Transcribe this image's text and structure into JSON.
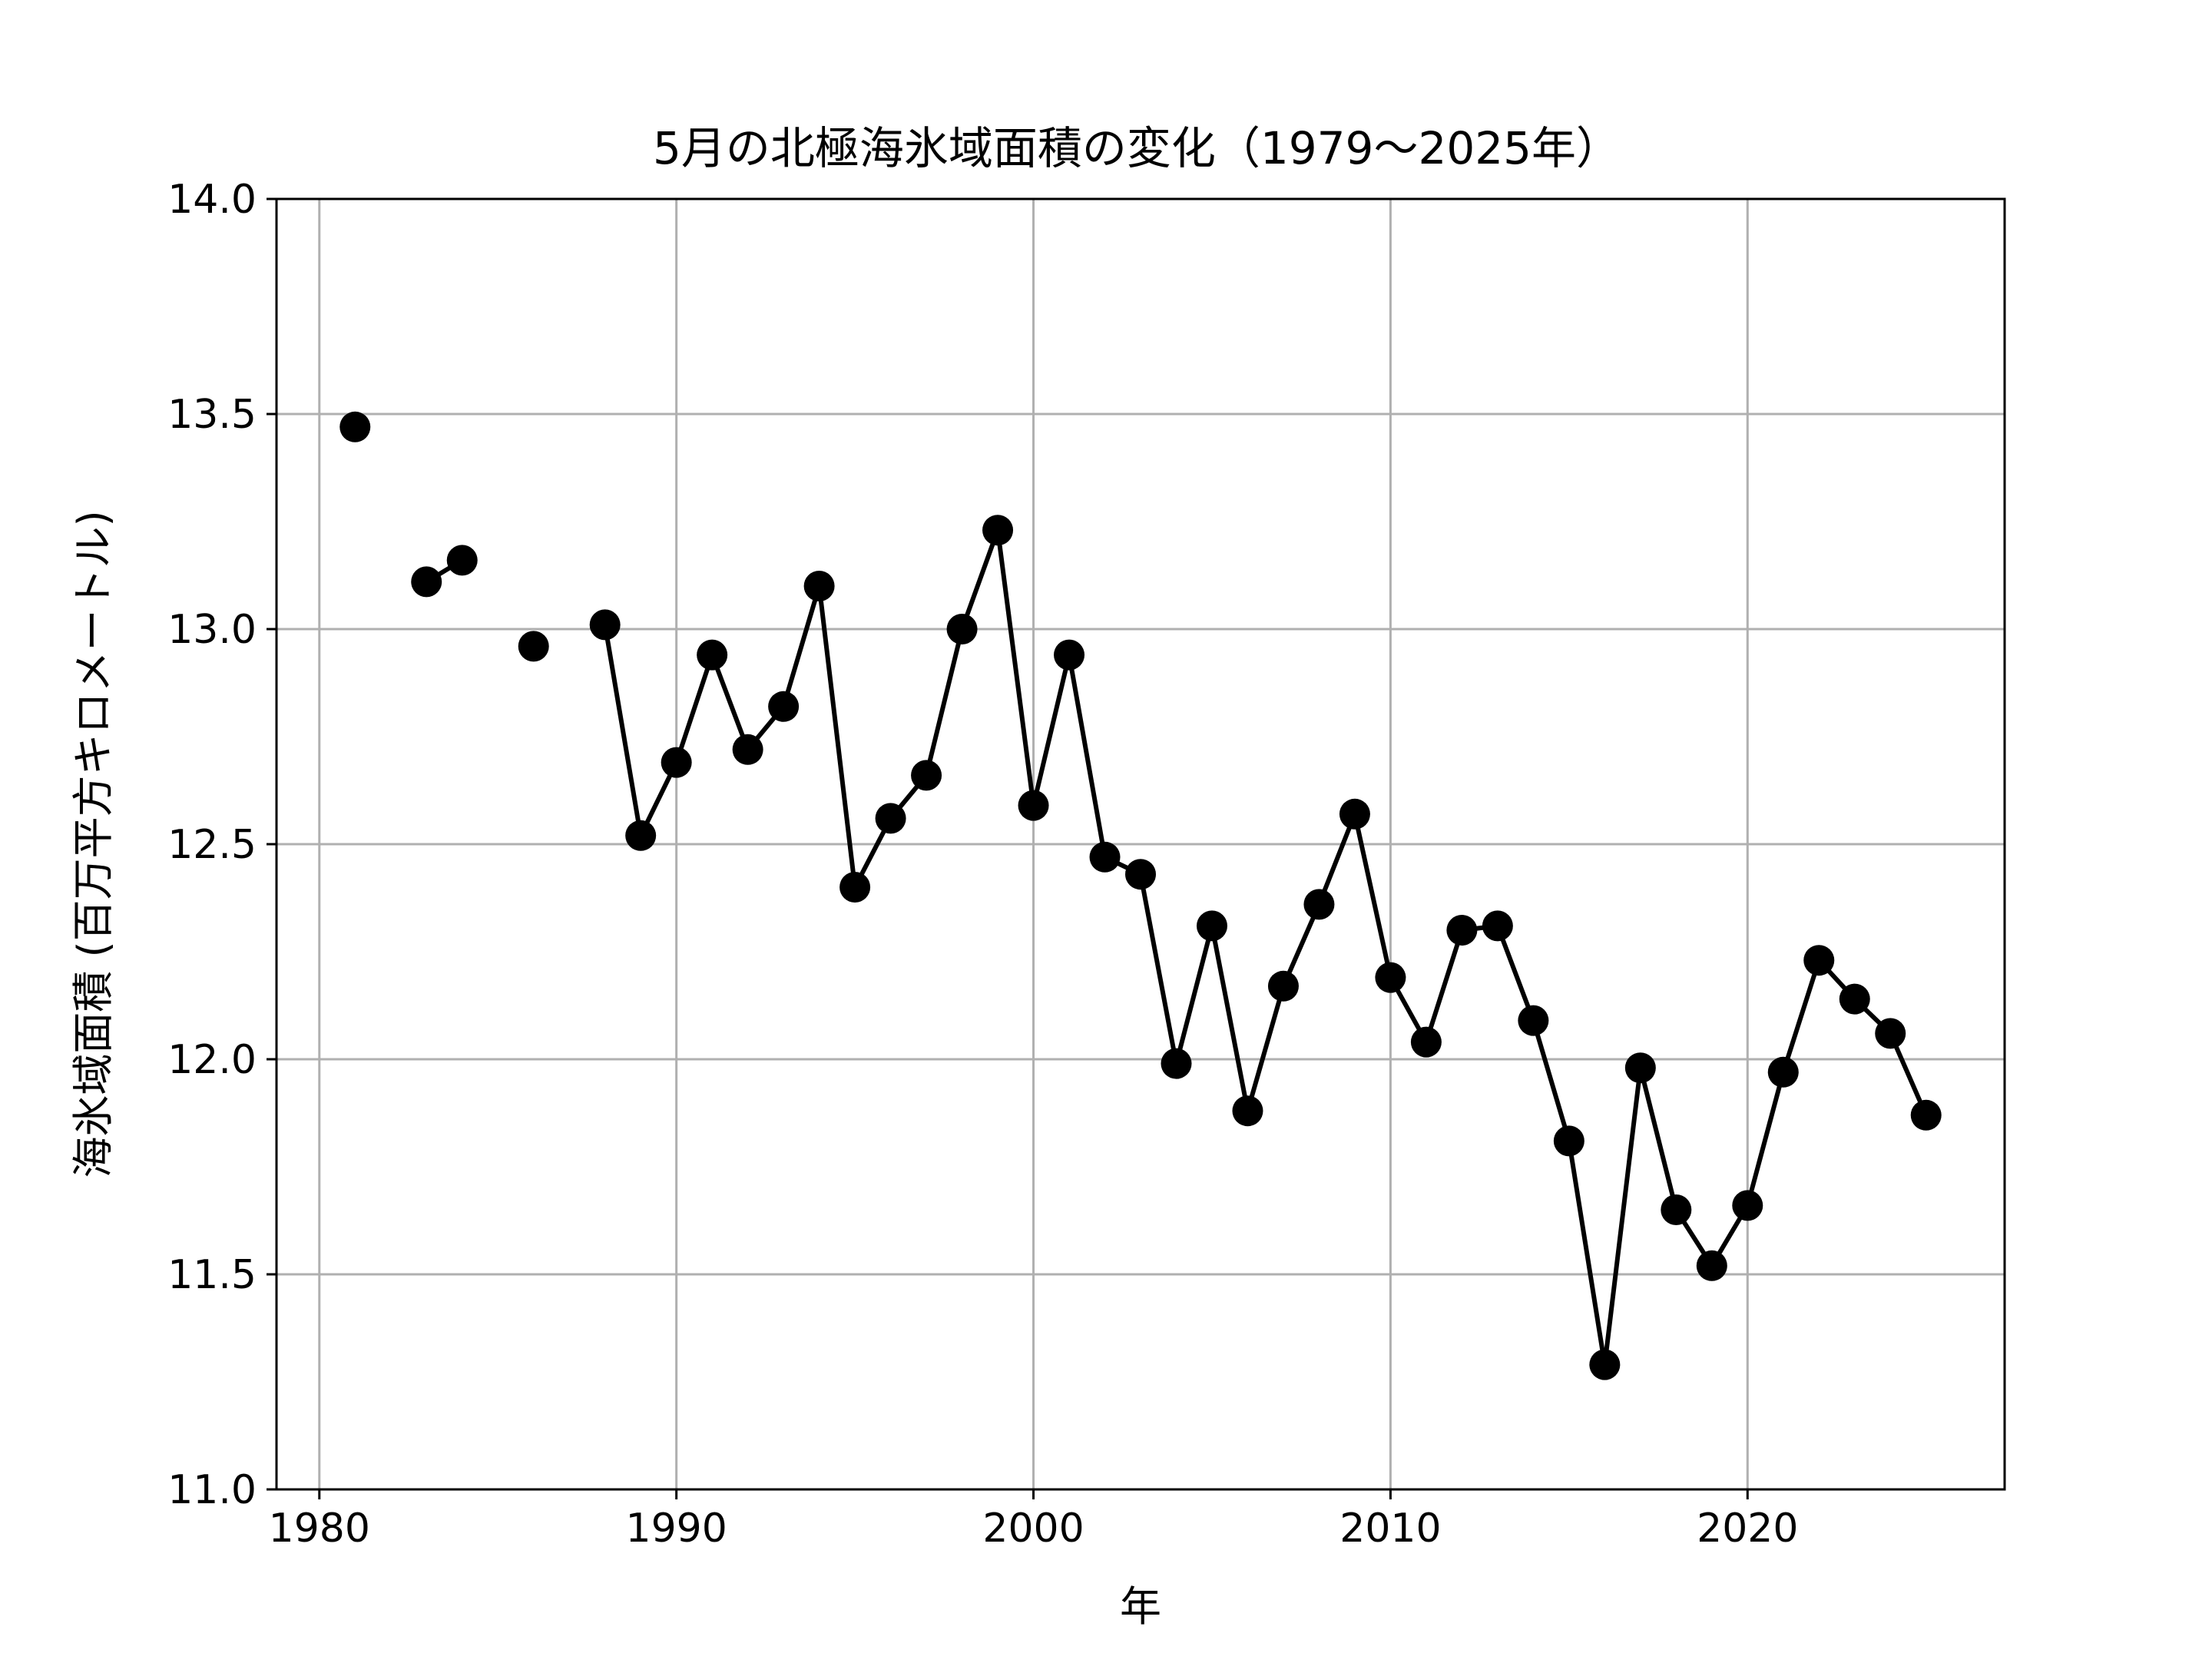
{
  "chart_data": {
    "type": "line",
    "title": "5月の北極海氷域面積の変化（1979～2025年）",
    "xlabel": "年",
    "ylabel": "海氷域面積 (百万平方キロメートル)",
    "xlim": [
      1978.8,
      2027.2
    ],
    "ylim": [
      11.0,
      14.0
    ],
    "xticks": [
      1980,
      1990,
      2000,
      2010,
      2020
    ],
    "yticks": [
      11.0,
      11.5,
      12.0,
      12.5,
      13.0,
      13.5,
      14.0
    ],
    "xtick_labels": [
      "1980",
      "1990",
      "2000",
      "2010",
      "2020"
    ],
    "ytick_labels": [
      "11.0",
      "11.5",
      "12.0",
      "12.5",
      "13.0",
      "13.5",
      "14.0"
    ],
    "grid": true,
    "colors": {
      "line": "#000000",
      "marker": "#000000",
      "grid": "#b0b0b0"
    },
    "series": [
      {
        "x": [
          1979,
          1980,
          1981,
          1982,
          1983,
          1984,
          1985,
          1986,
          1987,
          1988,
          1989,
          1990,
          1991,
          1992,
          1993,
          1994,
          1995,
          1996,
          1997,
          1998,
          1999,
          2000,
          2001,
          2002,
          2003,
          2004,
          2005,
          2006,
          2007,
          2008,
          2009,
          2010,
          2011,
          2012,
          2013,
          2014,
          2015,
          2016,
          2017,
          2018,
          2019,
          2020,
          2021,
          2022,
          2023,
          2024,
          2025
        ],
        "values": [
          null,
          null,
          13.47,
          null,
          13.11,
          13.16,
          null,
          12.96,
          null,
          13.01,
          12.52,
          12.69,
          12.94,
          12.72,
          12.82,
          13.1,
          12.4,
          12.56,
          12.66,
          13.0,
          13.23,
          12.59,
          12.94,
          12.47,
          12.43,
          11.99,
          12.31,
          11.88,
          12.17,
          12.36,
          12.57,
          12.19,
          12.04,
          12.3,
          12.31,
          12.09,
          11.81,
          11.29,
          11.98,
          11.65,
          11.52,
          11.66,
          11.97,
          12.23,
          12.14,
          12.06,
          11.87
        ]
      }
    ]
  }
}
